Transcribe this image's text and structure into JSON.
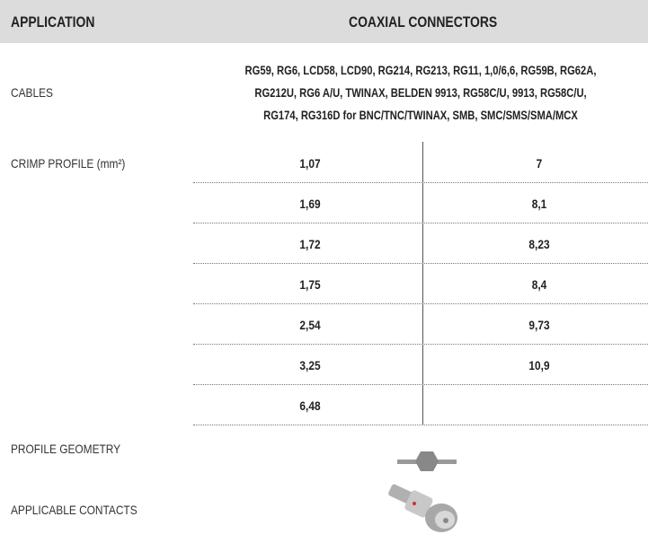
{
  "header": {
    "application": "APPLICATION",
    "product": "COAXIAL CONNECTORS"
  },
  "cables": {
    "label": "CABLES",
    "lines": [
      "RG59, RG6, LCD58, LCD90, RG214, RG213, RG11, 1,0/6,6, RG59B, RG62A,",
      "RG212U, RG6 A/U, TWINAX, BELDEN 9913, RG58C/U, 9913, RG58C/U,",
      "RG174, RG316D for BNC/TNC/TWINAX, SMB, SMC/SMS/SMA/MCX"
    ]
  },
  "crimp_profile": {
    "label": "CRIMP PROFILE (mm²)",
    "left": [
      "1,07",
      "1,69",
      "1,72",
      "1,75",
      "2,54",
      "3,25",
      "6,48"
    ],
    "right": [
      "7",
      "8,1",
      "8,23",
      "8,4",
      "9,73",
      "10,9"
    ]
  },
  "profile_geometry": {
    "label": "PROFILE GEOMETRY"
  },
  "applicable_contacts": {
    "label": "APPLICABLE CONTACTS"
  }
}
